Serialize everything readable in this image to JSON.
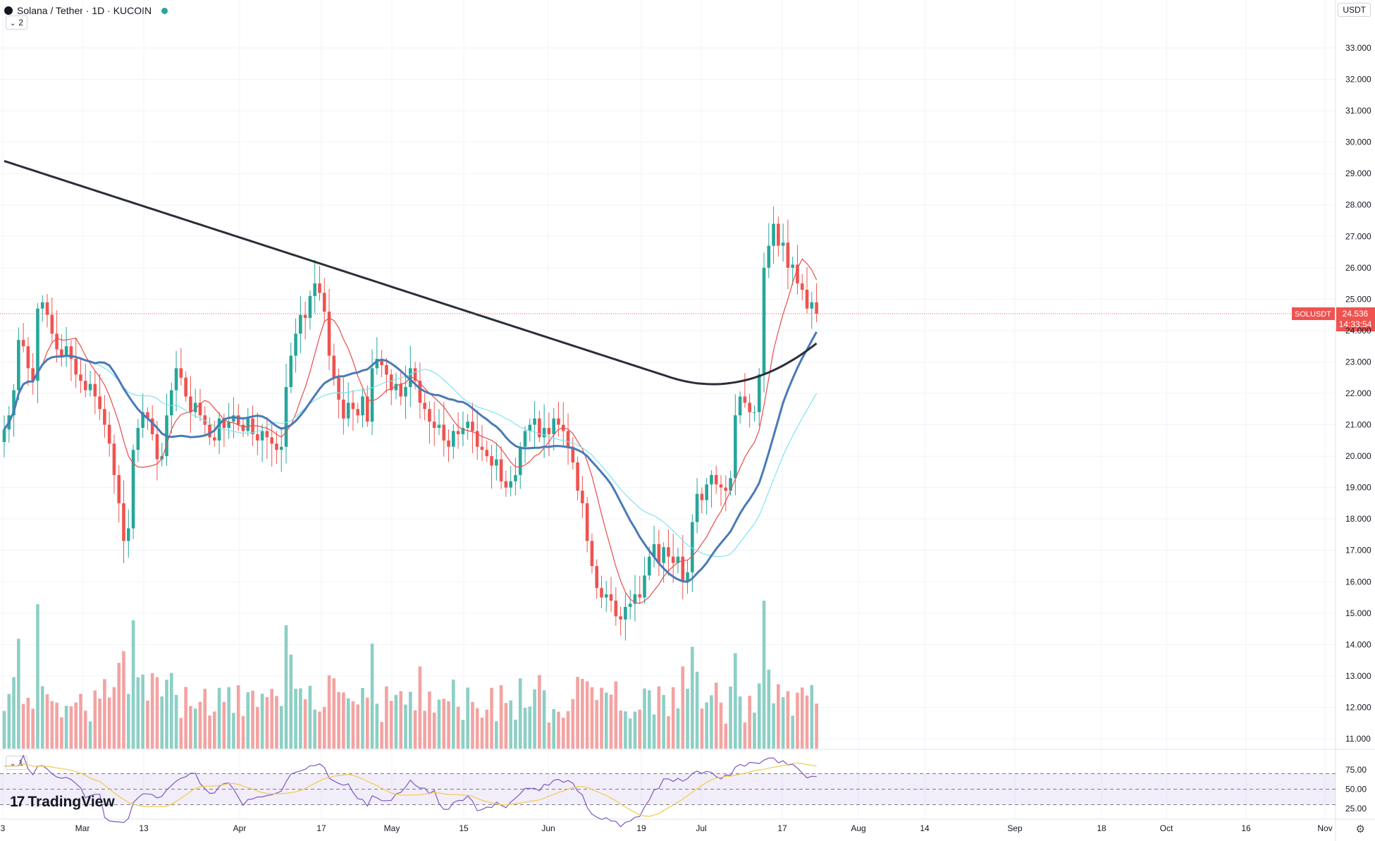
{
  "header": {
    "symbol_title": "Solana / Tether · 1D · KUCOIN",
    "indicator_count": "2",
    "rsi_count": "1",
    "currency": "USDT"
  },
  "watermark": "TradingView",
  "icons": {
    "logo": "solana-logo-icon",
    "status": "market-open-dot-icon",
    "settings": "gear-icon"
  },
  "chart_data": {
    "type": "candlestick",
    "price_axis": {
      "ticks": [
        33,
        32,
        31,
        30,
        29,
        28,
        27,
        26,
        25,
        24,
        23,
        22,
        21,
        20,
        19,
        18,
        17,
        16,
        15,
        14,
        13,
        12,
        11
      ],
      "tick_labels": [
        "33.000",
        "32.000",
        "31.000",
        "30.000",
        "29.000",
        "28.000",
        "27.000",
        "26.000",
        "25.000",
        "24.000",
        "23.000",
        "22.000",
        "21.000",
        "20.000",
        "19.000",
        "18.000",
        "17.000",
        "16.000",
        "15.000",
        "14.000",
        "13.000",
        "12.000",
        "11.000"
      ],
      "range": [
        10.8,
        33.6
      ]
    },
    "current_price": {
      "symbol": "SOLUSDT",
      "value": 24.536,
      "label": "24.536",
      "countdown": "14:33:54"
    },
    "time_axis": [
      "3",
      "Mar",
      "13",
      "Apr",
      "17",
      "May",
      "15",
      "Jun",
      "19",
      "Jul",
      "17",
      "Aug",
      "14",
      "Sep",
      "18",
      "Oct",
      "16",
      "Nov"
    ],
    "colors": {
      "up": "#26a69a",
      "down": "#ef5350",
      "up_volume": "#8ccfc5",
      "down_volume": "#f3a3a2",
      "ma_slow": "#2a2e39",
      "ma_mid": "#4a7ab5",
      "ma_fast": "#e84c4c",
      "ma_light": "#7fe3ef",
      "rsi": "#7e57c2",
      "rsi_ma": "#f2c94c",
      "last_price": "#ef5350"
    },
    "rsi": {
      "levels": [
        70,
        50,
        30
      ],
      "ticks": [
        75,
        50,
        25
      ],
      "tick_labels": [
        "75.00",
        "50.00",
        "25.00"
      ]
    },
    "series": {
      "close": [
        20.85,
        21.3,
        22.1,
        23.7,
        23.5,
        22.8,
        22.4,
        24.7,
        24.9,
        24.5,
        23.9,
        23.4,
        23.2,
        23.5,
        23.1,
        22.6,
        22.4,
        22.1,
        22.3,
        21.9,
        21.5,
        21.0,
        20.4,
        19.4,
        18.5,
        17.3,
        17.7,
        20.2,
        20.9,
        21.4,
        21.2,
        20.7,
        19.9,
        20.0,
        21.3,
        22.1,
        22.8,
        22.5,
        21.9,
        21.4,
        21.7,
        21.3,
        21.0,
        20.6,
        20.5,
        21.2,
        20.9,
        21.1,
        21.3,
        21.0,
        20.8,
        21.2,
        20.7,
        20.5,
        20.8,
        20.6,
        20.4,
        20.2,
        20.3,
        22.2,
        23.2,
        23.9,
        24.5,
        24.4,
        25.1,
        25.5,
        25.2,
        24.6,
        23.2,
        22.5,
        21.8,
        21.2,
        21.7,
        21.5,
        21.3,
        21.9,
        21.1,
        22.8,
        23.1,
        22.9,
        22.6,
        22.1,
        22.3,
        21.9,
        22.2,
        22.8,
        22.4,
        21.7,
        21.5,
        21.1,
        20.9,
        21.0,
        20.5,
        20.3,
        20.8,
        20.7,
        20.9,
        21.1,
        20.8,
        20.3,
        20.2,
        20.0,
        19.7,
        19.9,
        19.2,
        19.0,
        19.2,
        19.4,
        20.3,
        20.8,
        21.0,
        21.2,
        20.6,
        20.9,
        20.7,
        21.2,
        21.0,
        20.8,
        20.3,
        19.8,
        18.9,
        18.5,
        17.3,
        16.5,
        15.8,
        15.5,
        15.6,
        15.4,
        14.9,
        14.8,
        15.2,
        15.3,
        15.6,
        15.5,
        16.2,
        16.8,
        17.2,
        16.6,
        17.1,
        16.8,
        16.6,
        16.8,
        16.0,
        16.3,
        17.9,
        18.8,
        18.6,
        19.1,
        19.4,
        19.1,
        19.0,
        18.9,
        19.3,
        21.3,
        21.9,
        21.7,
        21.4,
        21.4,
        22.6,
        26.0,
        26.7,
        27.4,
        26.7,
        26.8,
        26.0,
        26.1,
        25.5,
        25.3,
        24.7,
        24.9,
        24.536
      ],
      "volume_scale_note": "",
      "ma_slow": [],
      "ma_mid": [],
      "ma_fast": [],
      "ma_light": []
    }
  }
}
